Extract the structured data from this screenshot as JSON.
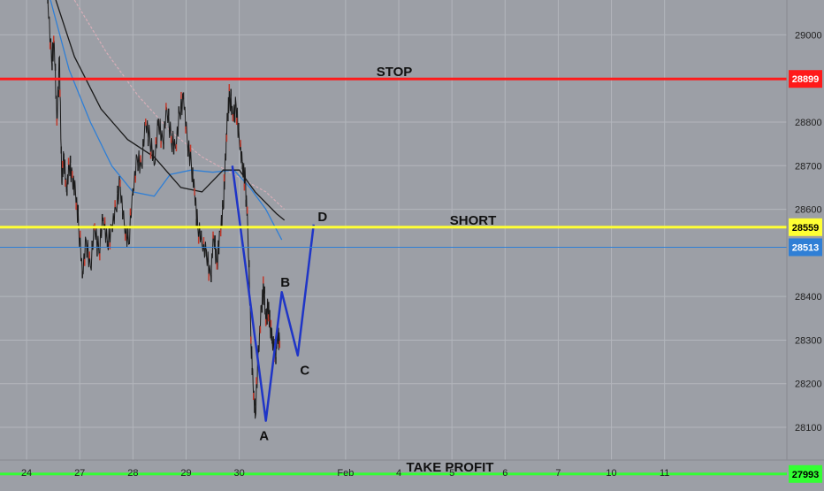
{
  "chart_data": {
    "type": "line",
    "ylim": [
      28025,
      29080
    ],
    "xlim": [
      0,
      14.8
    ],
    "y_ticks": [
      29000,
      28800,
      28700,
      28600,
      28400,
      28300,
      28200,
      28100
    ],
    "x_ticks": [
      {
        "x": 0.5,
        "label": "24"
      },
      {
        "x": 1.5,
        "label": "27"
      },
      {
        "x": 2.5,
        "label": "28"
      },
      {
        "x": 3.5,
        "label": "29"
      },
      {
        "x": 4.5,
        "label": "30"
      },
      {
        "x": 6.5,
        "label": "Feb"
      },
      {
        "x": 7.5,
        "label": "4"
      },
      {
        "x": 8.5,
        "label": "5"
      },
      {
        "x": 9.5,
        "label": "6"
      },
      {
        "x": 10.5,
        "label": "7"
      },
      {
        "x": 11.5,
        "label": "10"
      },
      {
        "x": 12.5,
        "label": "11"
      }
    ],
    "grid": true,
    "levels": [
      {
        "label": "STOP",
        "value": 28899,
        "badge": "28899",
        "color": "#ff1a1a",
        "text_color": "#ffffff"
      },
      {
        "label": "SHORT",
        "value": 28559,
        "badge": "28559",
        "color": "#ffff33",
        "text_color": "#000000"
      },
      {
        "label": "",
        "value": 28513,
        "badge": "28513",
        "color": "#2f7fd6",
        "text_color": "#ffffff"
      },
      {
        "label": "TAKE PROFIT",
        "value": 27993,
        "badge": "27993",
        "color": "#33ff33",
        "text_color": "#000000"
      }
    ],
    "price_path": [
      [
        0.9,
        29080
      ],
      [
        0.97,
        28940
      ],
      [
        1.02,
        28985
      ],
      [
        1.07,
        28800
      ],
      [
        1.12,
        28950
      ],
      [
        1.16,
        28660
      ],
      [
        1.2,
        28720
      ],
      [
        1.25,
        28640
      ],
      [
        1.3,
        28700
      ],
      [
        1.36,
        28680
      ],
      [
        1.42,
        28640
      ],
      [
        1.48,
        28560
      ],
      [
        1.55,
        28450
      ],
      [
        1.62,
        28530
      ],
      [
        1.7,
        28470
      ],
      [
        1.78,
        28560
      ],
      [
        1.86,
        28500
      ],
      [
        1.94,
        28580
      ],
      [
        2.02,
        28520
      ],
      [
        2.1,
        28560
      ],
      [
        2.18,
        28600
      ],
      [
        2.26,
        28660
      ],
      [
        2.34,
        28560
      ],
      [
        2.42,
        28520
      ],
      [
        2.5,
        28640
      ],
      [
        2.58,
        28720
      ],
      [
        2.66,
        28700
      ],
      [
        2.74,
        28800
      ],
      [
        2.82,
        28760
      ],
      [
        2.9,
        28700
      ],
      [
        2.98,
        28800
      ],
      [
        3.06,
        28760
      ],
      [
        3.14,
        28830
      ],
      [
        3.22,
        28760
      ],
      [
        3.3,
        28740
      ],
      [
        3.38,
        28820
      ],
      [
        3.45,
        28860
      ],
      [
        3.52,
        28760
      ],
      [
        3.6,
        28700
      ],
      [
        3.66,
        28640
      ],
      [
        3.72,
        28560
      ],
      [
        3.8,
        28520
      ],
      [
        3.88,
        28500
      ],
      [
        3.96,
        28450
      ],
      [
        4.02,
        28540
      ],
      [
        4.08,
        28470
      ],
      [
        4.14,
        28550
      ],
      [
        4.2,
        28600
      ],
      [
        4.24,
        28720
      ],
      [
        4.28,
        28820
      ],
      [
        4.32,
        28860
      ],
      [
        4.38,
        28810
      ],
      [
        4.44,
        28840
      ],
      [
        4.5,
        28760
      ],
      [
        4.56,
        28700
      ],
      [
        4.62,
        28660
      ],
      [
        4.66,
        28560
      ],
      [
        4.72,
        28300
      ],
      [
        4.76,
        28200
      ],
      [
        4.8,
        28120
      ],
      [
        4.86,
        28280
      ],
      [
        4.92,
        28380
      ],
      [
        4.96,
        28420
      ],
      [
        5.0,
        28340
      ],
      [
        5.04,
        28380
      ],
      [
        5.08,
        28340
      ],
      [
        5.12,
        28300
      ],
      [
        5.18,
        28270
      ],
      [
        5.22,
        28310
      ],
      [
        5.26,
        28290
      ]
    ],
    "ma_black": [
      [
        1.05,
        29080
      ],
      [
        1.4,
        28950
      ],
      [
        1.9,
        28830
      ],
      [
        2.4,
        28760
      ],
      [
        2.9,
        28720
      ],
      [
        3.4,
        28650
      ],
      [
        3.8,
        28640
      ],
      [
        4.2,
        28690
      ],
      [
        4.5,
        28690
      ],
      [
        4.8,
        28640
      ],
      [
        5.2,
        28590
      ],
      [
        5.35,
        28575
      ]
    ],
    "ma_blue": [
      [
        0.95,
        29080
      ],
      [
        1.3,
        28920
      ],
      [
        1.7,
        28800
      ],
      [
        2.1,
        28700
      ],
      [
        2.5,
        28640
      ],
      [
        2.9,
        28630
      ],
      [
        3.2,
        28680
      ],
      [
        3.6,
        28690
      ],
      [
        4.0,
        28685
      ],
      [
        4.4,
        28690
      ],
      [
        4.7,
        28650
      ],
      [
        5.0,
        28600
      ],
      [
        5.3,
        28530
      ]
    ],
    "ma_pink": [
      [
        1.4,
        29080
      ],
      [
        2.0,
        28960
      ],
      [
        2.6,
        28860
      ],
      [
        3.2,
        28780
      ],
      [
        3.8,
        28720
      ],
      [
        4.4,
        28680
      ],
      [
        5.0,
        28640
      ],
      [
        5.35,
        28600
      ]
    ],
    "pattern": [
      {
        "label": "",
        "x": 4.37,
        "y": 28700
      },
      {
        "label": "A",
        "x": 5.0,
        "y": 28115
      },
      {
        "label": "B",
        "x": 5.3,
        "y": 28410
      },
      {
        "label": "C",
        "x": 5.6,
        "y": 28265
      },
      {
        "label": "D",
        "x": 5.9,
        "y": 28565
      }
    ]
  }
}
